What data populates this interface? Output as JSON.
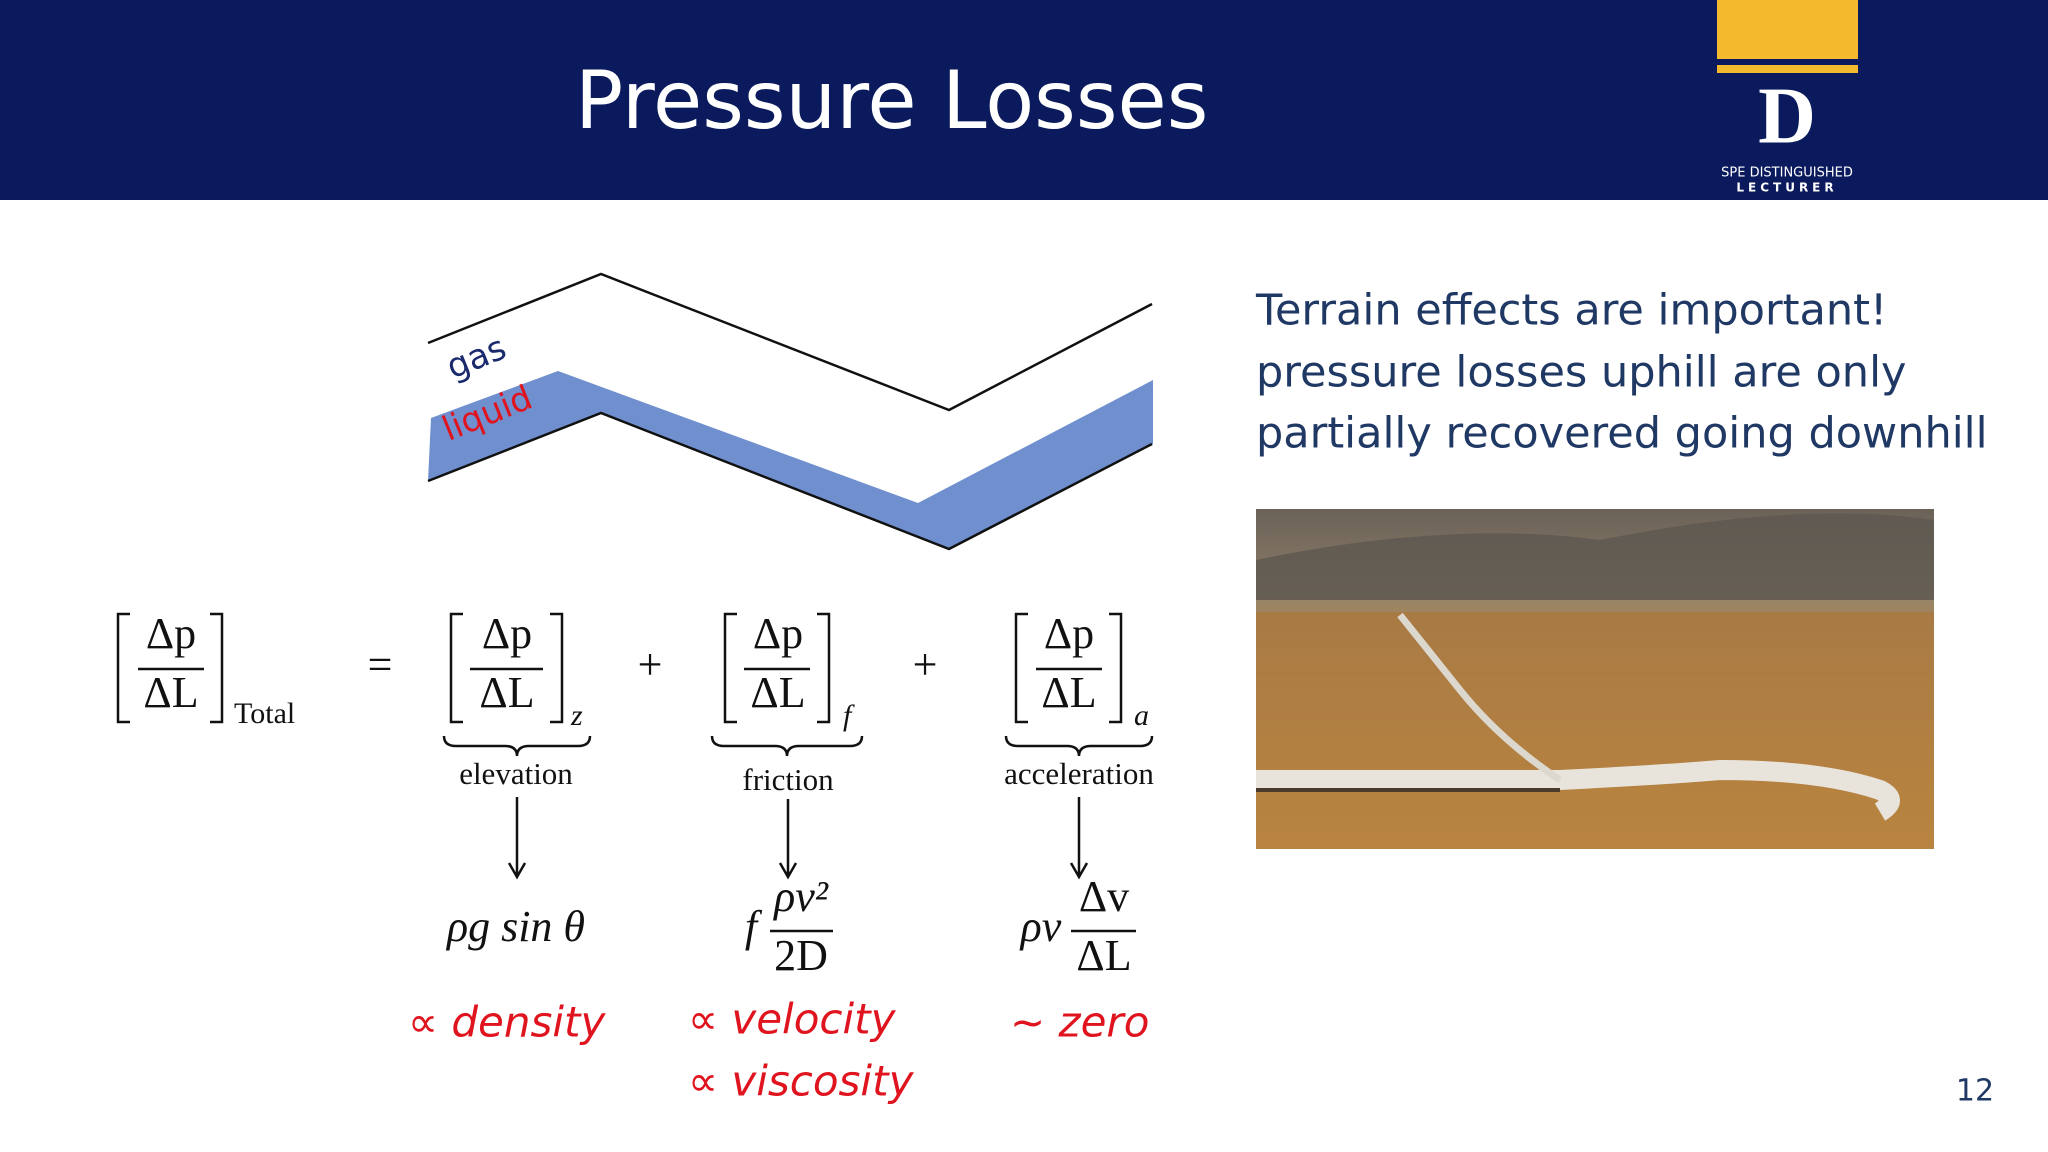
{
  "header": {
    "title": "Pressure Losses"
  },
  "logo": {
    "letter": "D",
    "line1": "SPE DISTINGUISHED",
    "line2": "LECTURER"
  },
  "diagram": {
    "gas": "gas",
    "liquid": "liquid"
  },
  "equation": {
    "lhs": {
      "numerator": "Δp",
      "denominator": "ΔL",
      "subscript": "Total"
    },
    "equals": "=",
    "plus": "+",
    "terms": [
      {
        "numerator": "Δp",
        "denominator": "ΔL",
        "subscript": "z",
        "label": "elevation",
        "expression": {
          "text": "ρg sin θ"
        },
        "notes": [
          "∝  density"
        ]
      },
      {
        "numerator": "Δp",
        "denominator": "ΔL",
        "subscript": "f",
        "label": "friction",
        "expression": {
          "prefix": "f",
          "numerator": "ρv²",
          "denominator": "2D"
        },
        "notes": [
          "∝ velocity",
          "∝ viscosity"
        ]
      },
      {
        "numerator": "Δp",
        "denominator": "ΔL",
        "subscript": "a",
        "label": "acceleration",
        "expression": {
          "prefix": "ρv",
          "numerator": "Δv",
          "denominator": "ΔL"
        },
        "notes": [
          "~  zero"
        ]
      }
    ]
  },
  "side_text": [
    "Terrain effects are important!",
    "pressure losses uphill are only",
    "partially recovered going downhill"
  ],
  "page_number": "12"
}
